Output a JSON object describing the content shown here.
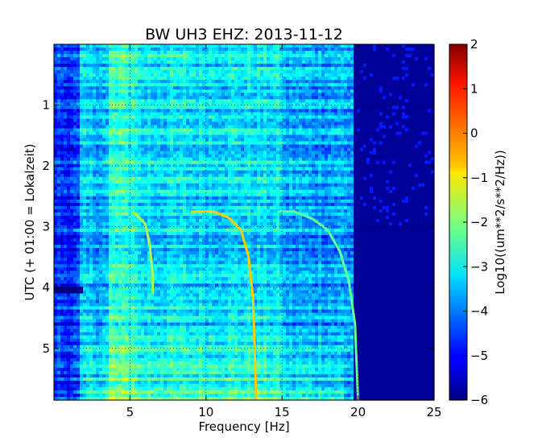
{
  "chart_data": {
    "type": "heatmap",
    "title": "BW UH3 EHZ: 2013-11-12",
    "xlabel": "Frequency [Hz]",
    "ylabel": "UTC (+ 01:00 = Lokalzeit)",
    "xlim": [
      0,
      25
    ],
    "ylim": [
      5.85,
      0
    ],
    "xticks": [
      5,
      10,
      15,
      20,
      25
    ],
    "xtick_labels": [
      "5",
      "10",
      "15",
      "20",
      "25"
    ],
    "yticks": [
      1,
      2,
      3,
      4,
      5
    ],
    "ytick_labels": [
      "1",
      "2",
      "3",
      "4",
      "5"
    ],
    "grid": true,
    "colormap": "jet",
    "colorbar": {
      "label": "Log10((um**2/s**2/Hz))",
      "vmin": -6,
      "vmax": 2,
      "ticks": [
        2,
        1,
        0,
        -1,
        -2,
        -3,
        -4,
        -5,
        -6
      ],
      "tick_labels": [
        "2",
        "1",
        "0",
        "−1",
        "−2",
        "−3",
        "−4",
        "−5",
        "−6"
      ]
    },
    "background_level": {
      "description_levels": [
        {
          "freq_range": [
            0,
            1.5
          ],
          "value": -4.6
        },
        {
          "freq_range": [
            1.5,
            3.5
          ],
          "value": -3.5
        },
        {
          "freq_range": [
            3.5,
            5.5
          ],
          "value": -2.7
        },
        {
          "freq_range": [
            5.5,
            15
          ],
          "value": -3.2
        },
        {
          "freq_range": [
            15,
            19.5
          ],
          "value": -3.7
        },
        {
          "freq_range": [
            19.5,
            25
          ],
          "value": -5.8
        }
      ]
    },
    "tracks": [
      {
        "points": [
          [
            5.2,
            2.75
          ],
          [
            6.0,
            2.95
          ],
          [
            6.3,
            3.3
          ],
          [
            6.5,
            3.8
          ],
          [
            6.5,
            4.1
          ]
        ],
        "value": -1.6
      },
      {
        "points": [
          [
            9.0,
            2.75
          ],
          [
            10.5,
            2.75
          ],
          [
            11.5,
            2.85
          ],
          [
            12.3,
            3.05
          ],
          [
            12.8,
            3.5
          ],
          [
            13.1,
            4.2
          ],
          [
            13.2,
            5.0
          ],
          [
            13.3,
            5.85
          ]
        ],
        "value": -0.6
      },
      {
        "points": [
          [
            14.7,
            2.75
          ],
          [
            15.8,
            2.75
          ],
          [
            17.0,
            2.87
          ],
          [
            18.0,
            3.05
          ],
          [
            18.8,
            3.4
          ],
          [
            19.4,
            3.9
          ],
          [
            19.8,
            4.6
          ],
          [
            20.0,
            5.85
          ]
        ],
        "value": -2.2
      }
    ],
    "band_4h": {
      "time": 4.0,
      "freq_range": [
        0,
        1.8
      ],
      "value": -6.0
    }
  }
}
